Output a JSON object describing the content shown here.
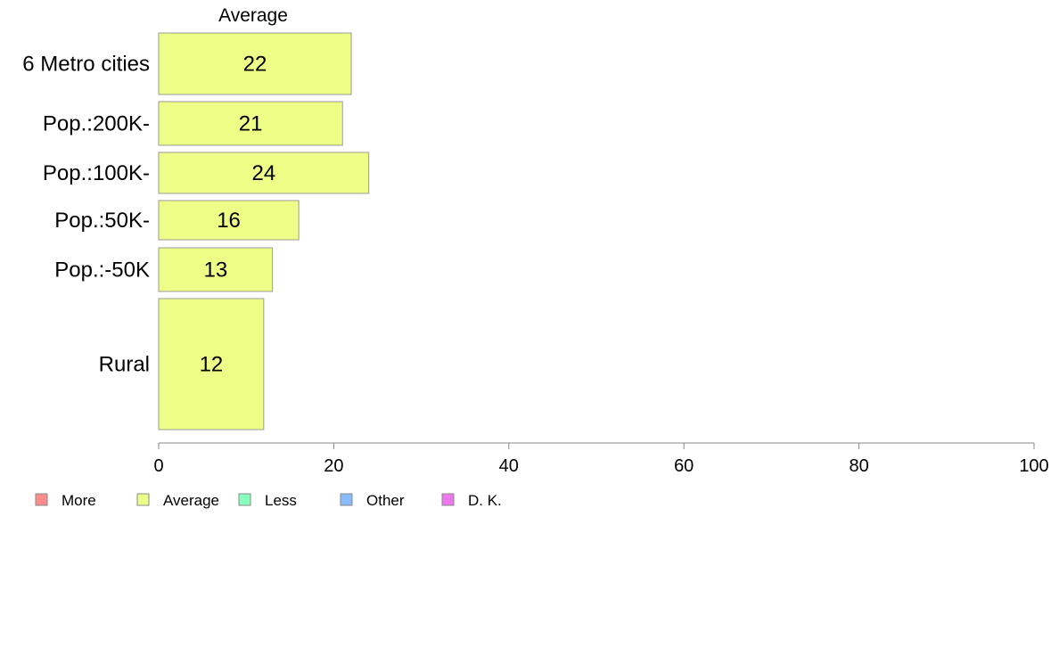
{
  "chart_data": {
    "type": "bar",
    "orientation": "horizontal",
    "series_header": "Average",
    "categories": [
      "6 Metro cities",
      "Pop.:200K-",
      "Pop.:100K-",
      "Pop.:50K-",
      "Pop.:-50K",
      "Rural"
    ],
    "series": [
      {
        "name": "Average",
        "values": [
          22,
          21,
          24,
          16,
          13,
          12
        ],
        "color": "#eeff88"
      }
    ],
    "value_labels": [
      "22",
      "21",
      "24",
      "16",
      "13",
      "12"
    ],
    "xlim": [
      0,
      100
    ],
    "xticks": [
      0,
      20,
      40,
      60,
      80,
      100
    ],
    "xtick_labels": [
      "0",
      "20",
      "40",
      "60",
      "80",
      "100"
    ],
    "grid": false,
    "legend_position": "bottom-left",
    "legend": [
      {
        "label": "More",
        "color": "#ff8a8a"
      },
      {
        "label": "Average",
        "color": "#eeff88"
      },
      {
        "label": "Less",
        "color": "#88ffbb"
      },
      {
        "label": "Other",
        "color": "#88bbff"
      },
      {
        "label": "D. K.",
        "color": "#ee77ee"
      }
    ],
    "bar_stroke": "#999999",
    "axis_color": "#888888"
  }
}
